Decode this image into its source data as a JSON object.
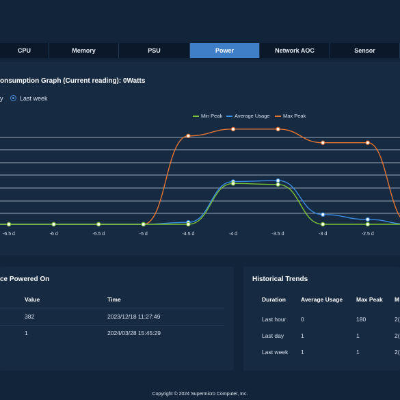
{
  "tabs": [
    {
      "label": "CPU",
      "active": false
    },
    {
      "label": "Memory",
      "active": false
    },
    {
      "label": "PSU",
      "active": false
    },
    {
      "label": "Power",
      "active": true
    },
    {
      "label": "Network AOC",
      "active": false
    },
    {
      "label": "Sensor",
      "active": false
    }
  ],
  "graph": {
    "title": "onsumption Graph (Current reading): 0Watts",
    "range_options": [
      {
        "label": "y",
        "selected": false
      },
      {
        "label": "Last week",
        "selected": true
      }
    ]
  },
  "chart_data": {
    "type": "line",
    "x": [
      "-6.5 d",
      "-6 d",
      "-5.5 d",
      "-5 d",
      "-4.5 d",
      "-4 d",
      "-3.5 d",
      "-3 d",
      "-2.5 d"
    ],
    "x_values": [
      -6.5,
      -6,
      -5.5,
      -5,
      -4.5,
      -4,
      -3.5,
      -3,
      -2.5
    ],
    "series": [
      {
        "name": "Min Peak",
        "color": "#7cc236",
        "values": [
          0,
          0,
          0,
          0,
          0,
          0.42,
          0.41,
          0,
          0
        ]
      },
      {
        "name": "Average Usage",
        "color": "#3a8de6",
        "values": [
          0,
          0,
          0,
          0,
          0.02,
          0.44,
          0.45,
          0.1,
          0.05
        ]
      },
      {
        "name": "Max Peak",
        "color": "#e8742e",
        "values": [
          0,
          0,
          0,
          0,
          0.91,
          0.98,
          0.98,
          0.84,
          0.84
        ]
      }
    ],
    "legend_position": "top-right",
    "grid": true
  },
  "powered_on": {
    "title": "ce Powered On",
    "columns": [
      "Value",
      "Time"
    ],
    "rows": [
      {
        "value": "382",
        "time": "2023/12/18 11:27:49"
      },
      {
        "value": "1",
        "time": "2024/03/28 15:45:29"
      }
    ]
  },
  "trends": {
    "title": "Historical Trends",
    "columns": [
      "Duration",
      "Average Usage",
      "Max Peak",
      "M"
    ],
    "rows": [
      {
        "duration": "Last hour",
        "avg": "0",
        "max": "180",
        "extra": "2("
      },
      {
        "duration": "Last day",
        "avg": "1",
        "max": "1",
        "extra": "2("
      },
      {
        "duration": "Last week",
        "avg": "1",
        "max": "1",
        "extra": "2("
      }
    ]
  },
  "footer": "Copyright © 2024 Supermicro Computer, Inc."
}
